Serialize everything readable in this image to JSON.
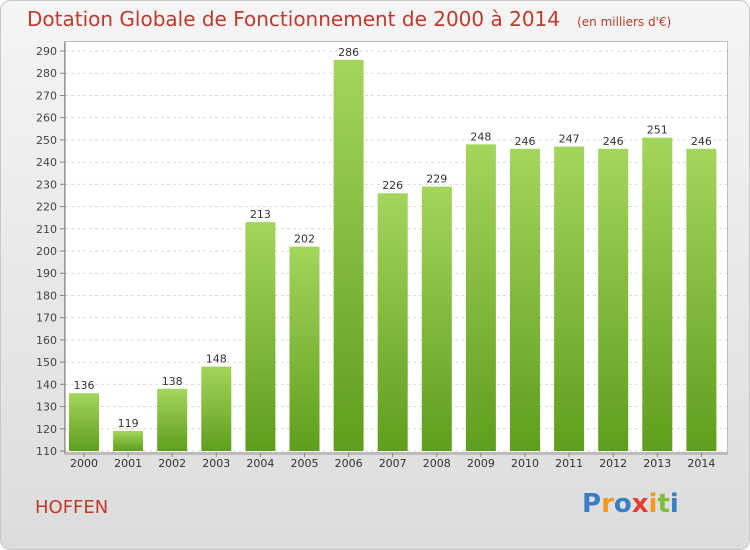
{
  "chart_data": {
    "type": "bar",
    "title": "Dotation Globale de Fonctionnement de 2000 à 2014",
    "unit_label": "(en milliers d'€)",
    "categories": [
      "2000",
      "2001",
      "2002",
      "2003",
      "2004",
      "2005",
      "2006",
      "2007",
      "2008",
      "2009",
      "2010",
      "2011",
      "2012",
      "2013",
      "2014"
    ],
    "values": [
      136,
      119,
      138,
      148,
      213,
      202,
      286,
      226,
      229,
      248,
      246,
      247,
      246,
      251,
      246
    ],
    "ylim": [
      110,
      290
    ],
    "yticks": [
      110,
      120,
      130,
      140,
      150,
      160,
      170,
      180,
      190,
      200,
      210,
      220,
      230,
      240,
      250,
      260,
      270,
      280,
      290
    ],
    "xlabel": "",
    "ylabel": "",
    "grid": true,
    "bar_color_top": "#a4d55c",
    "bar_color_bottom": "#5f9e1c"
  },
  "location": "HOFFEN",
  "logo": {
    "letters": [
      "P",
      "r",
      "o",
      "x",
      "i",
      "t",
      "i"
    ],
    "colors": [
      "#3a7ec4",
      "#f39a1e",
      "#3a7ec4",
      "#e63b2e",
      "#f39a1e",
      "#7fbf3a",
      "#3a7ec4"
    ]
  }
}
